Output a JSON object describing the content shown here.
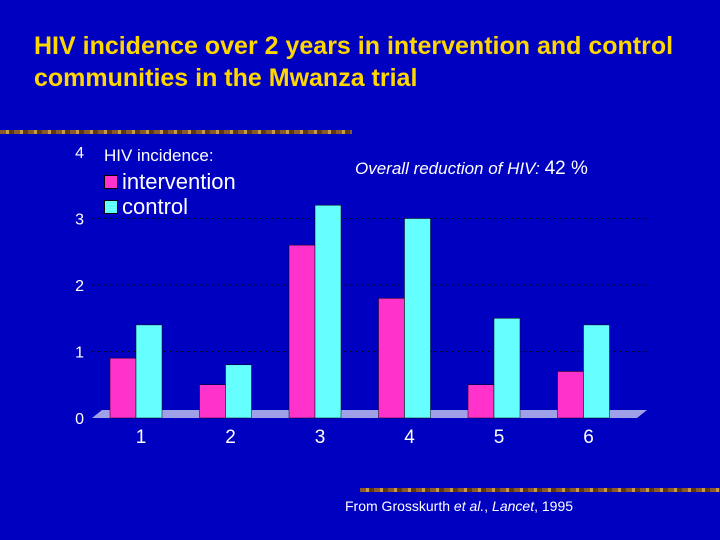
{
  "title": "HIV incidence over 2 years in intervention and control communities in the Mwanza trial",
  "annotation": {
    "text": "Overall reduction of HIV: ",
    "value": "42 %"
  },
  "source": {
    "prefix": "From Grosskurth ",
    "etal": "et al.",
    "sep": ", ",
    "journal": "Lancet",
    "year": ", 1995"
  },
  "colors": {
    "background": "#0000c0",
    "title": "#ffd700",
    "intervention": "#ff33cc",
    "control": "#66ffff",
    "floor": "#a0a0e8"
  },
  "chart_data": {
    "type": "bar",
    "title": "HIV incidence:",
    "categories": [
      "1",
      "2",
      "3",
      "4",
      "5",
      "6"
    ],
    "series": [
      {
        "name": "intervention",
        "values": [
          0.9,
          0.5,
          2.6,
          1.8,
          0.5,
          0.7
        ]
      },
      {
        "name": "control",
        "values": [
          1.4,
          0.8,
          3.2,
          3.0,
          1.5,
          1.4
        ]
      }
    ],
    "yticks": [
      "0",
      "1",
      "2",
      "3",
      "4"
    ],
    "ylim": [
      0,
      4
    ],
    "xlabel": "",
    "ylabel": "",
    "grid": true,
    "legend": "top-left"
  }
}
